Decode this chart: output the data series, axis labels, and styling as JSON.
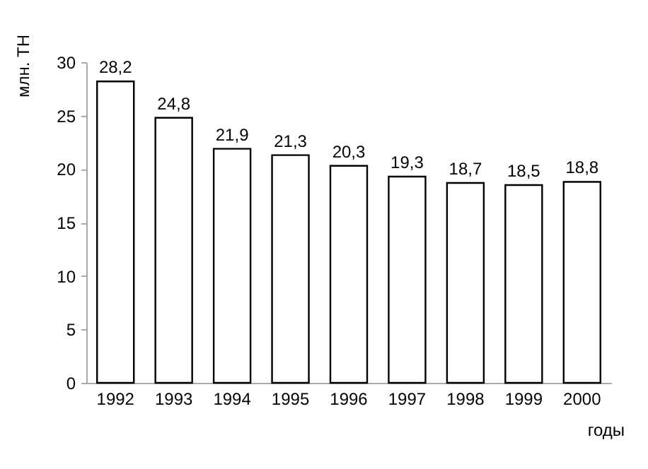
{
  "chart_data": {
    "type": "bar",
    "ylabel": "млн. ТН",
    "xlabel": "годы",
    "categories": [
      "1992",
      "1993",
      "1994",
      "1995",
      "1996",
      "1997",
      "1998",
      "1999",
      "2000"
    ],
    "values": [
      28.2,
      24.8,
      21.9,
      21.3,
      20.3,
      19.3,
      18.7,
      18.5,
      18.8
    ],
    "value_labels": [
      "28,2",
      "24,8",
      "21,9",
      "21,3",
      "20,3",
      "19,3",
      "18,7",
      "18,5",
      "18,8"
    ],
    "color": "#ffffff",
    "ylim": [
      0,
      30
    ],
    "yticks": [
      0,
      5,
      10,
      15,
      20,
      25,
      30
    ],
    "grid": false
  }
}
